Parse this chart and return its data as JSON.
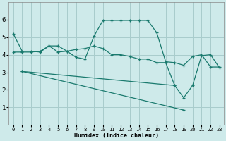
{
  "xlabel": "Humidex (Indice chaleur)",
  "bg_color": "#ceeaea",
  "grid_color": "#a8cccc",
  "line_color": "#1a7a6e",
  "xlim": [
    -0.5,
    23.5
  ],
  "ylim": [
    0,
    7
  ],
  "yticks": [
    1,
    2,
    3,
    4,
    5,
    6
  ],
  "xticks": [
    0,
    1,
    2,
    3,
    4,
    5,
    6,
    7,
    8,
    9,
    10,
    11,
    12,
    13,
    14,
    15,
    16,
    17,
    18,
    19,
    20,
    21,
    22,
    23
  ],
  "series": [
    {
      "x": [
        0,
        1,
        2,
        3,
        4,
        5,
        6,
        7,
        8,
        9,
        10,
        11,
        12,
        13,
        14,
        15,
        16,
        17,
        18,
        19,
        20,
        21,
        22,
        23
      ],
      "y": [
        5.2,
        4.2,
        4.2,
        4.15,
        4.5,
        4.5,
        4.2,
        3.85,
        3.75,
        5.05,
        5.95,
        5.95,
        5.95,
        5.95,
        5.95,
        5.95,
        5.25,
        3.6,
        3.55,
        3.4,
        3.9,
        4.0,
        3.3,
        3.3
      ]
    },
    {
      "x": [
        0,
        1,
        2,
        3,
        4,
        5,
        6,
        7,
        8,
        9,
        10,
        11,
        12,
        13,
        14,
        15,
        16,
        17,
        18,
        19,
        20,
        21,
        22,
        23
      ],
      "y": [
        4.15,
        4.15,
        4.15,
        4.2,
        4.5,
        4.15,
        4.2,
        4.3,
        4.35,
        4.5,
        4.35,
        4.0,
        4.0,
        3.9,
        3.75,
        3.75,
        3.55,
        3.55,
        2.25,
        1.55,
        2.25,
        3.95,
        4.0,
        3.25
      ]
    },
    {
      "x": [
        1,
        19
      ],
      "y": [
        3.05,
        0.85
      ]
    },
    {
      "x": [
        1,
        18
      ],
      "y": [
        3.05,
        2.25
      ]
    }
  ]
}
